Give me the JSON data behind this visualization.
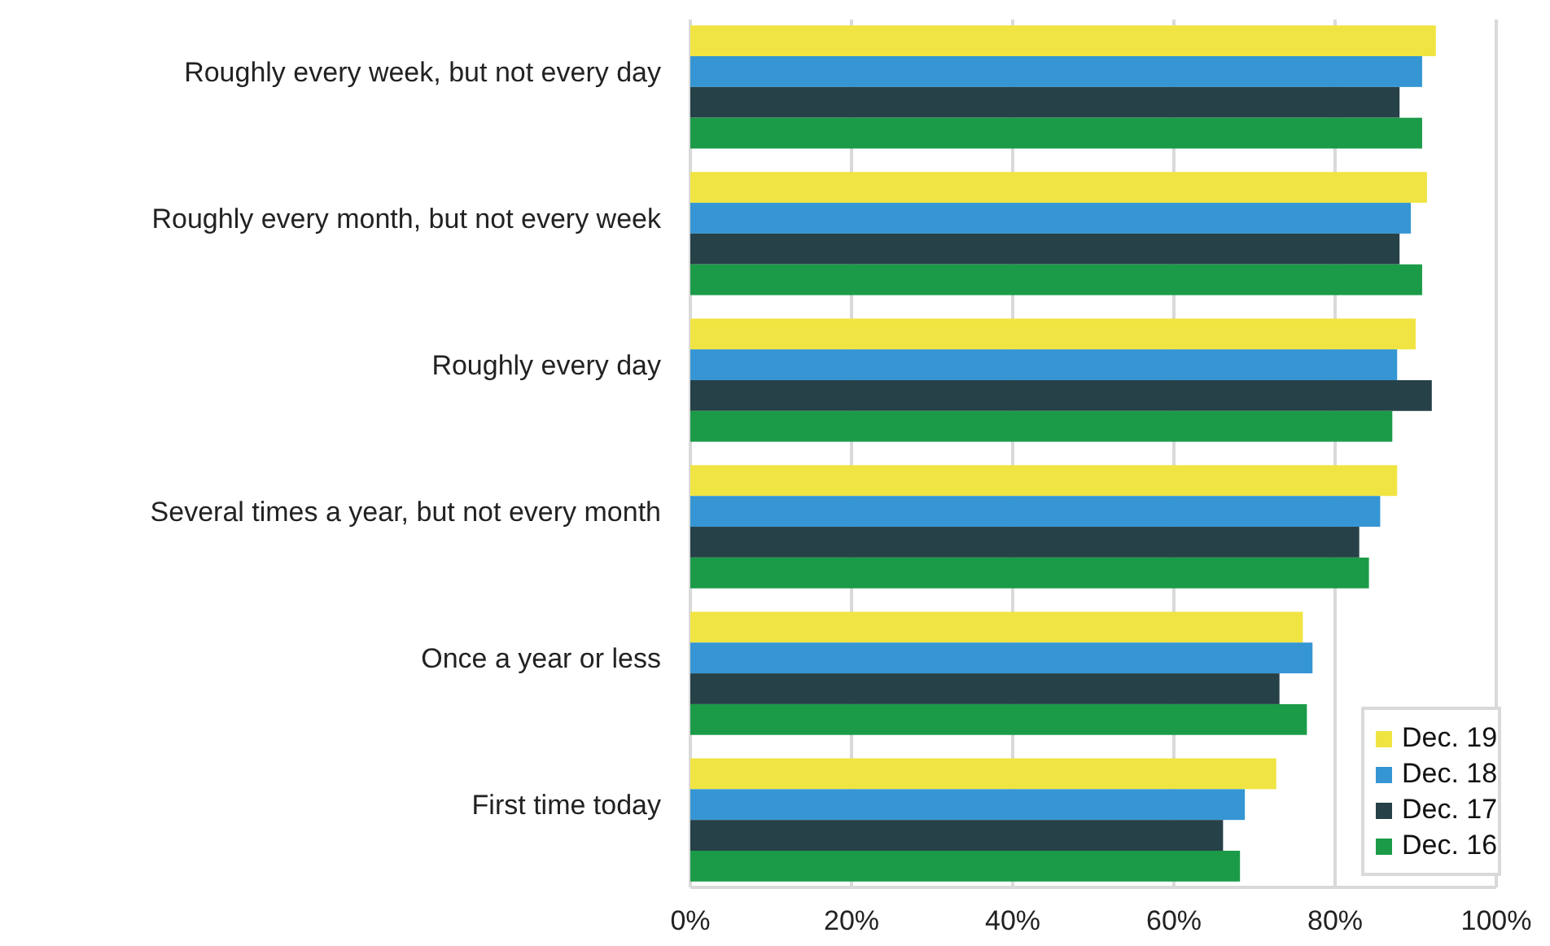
{
  "chart_data": {
    "type": "bar",
    "orientation": "horizontal",
    "categories": [
      "Roughly every week, but not every day",
      "Roughly every month, but not every week",
      "Roughly every day",
      "Several times a year, but not every month",
      "Once a year or less",
      "First time today"
    ],
    "series": [
      {
        "name": "Dec. 19",
        "color": "#f0e442",
        "values": [
          92.5,
          91.4,
          90.0,
          87.7,
          76.0,
          72.7
        ]
      },
      {
        "name": "Dec. 18",
        "color": "#3596d3",
        "values": [
          90.8,
          89.4,
          87.7,
          85.6,
          77.2,
          68.8
        ]
      },
      {
        "name": "Dec. 17",
        "color": "#274148",
        "values": [
          88.0,
          88.0,
          92.0,
          83.0,
          73.1,
          66.1
        ]
      },
      {
        "name": "Dec. 16",
        "color": "#1b9b48",
        "values": [
          90.8,
          90.8,
          87.1,
          84.2,
          76.5,
          68.2
        ]
      }
    ],
    "xlim": [
      0,
      100
    ],
    "xticks": [
      {
        "value": 0,
        "label": "0%"
      },
      {
        "value": 20,
        "label": "20%"
      },
      {
        "value": 40,
        "label": "40%"
      },
      {
        "value": 60,
        "label": "60%"
      },
      {
        "value": 80,
        "label": "80%"
      },
      {
        "value": 100,
        "label": "100%"
      }
    ],
    "grid": "x",
    "legend": "bottom right"
  }
}
